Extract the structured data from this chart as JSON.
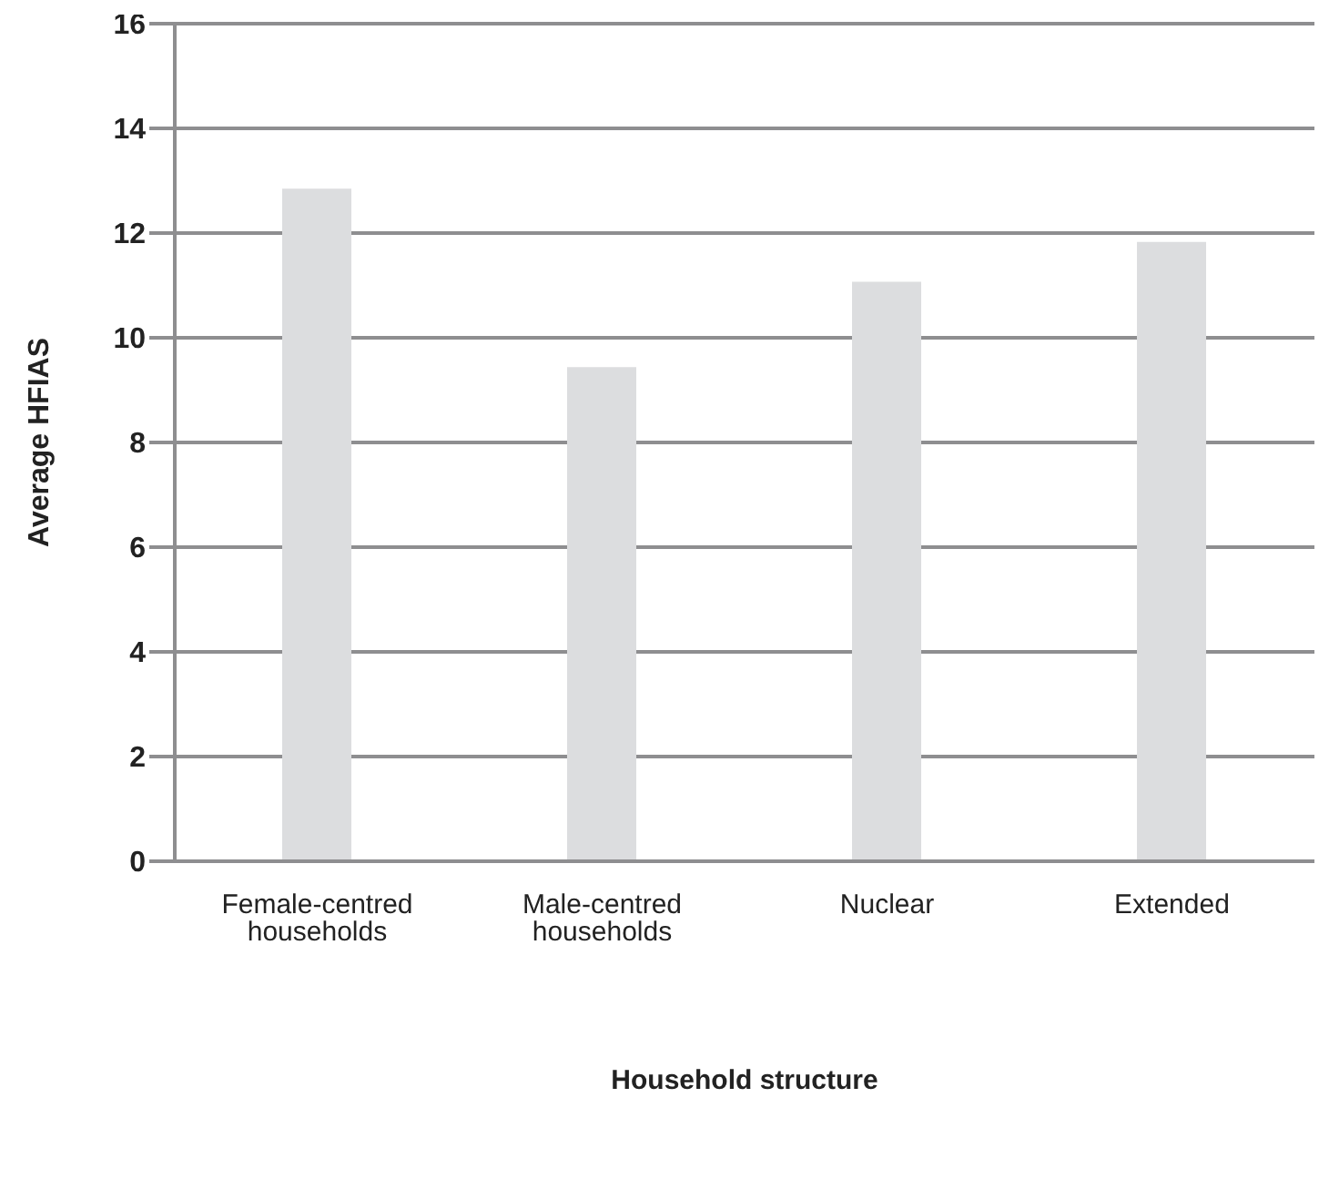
{
  "chart_data": {
    "type": "bar",
    "xlabel": "Household structure",
    "ylabel": "Average HFIAS",
    "categories": [
      "Female-centred households",
      "Male-centred households",
      "Nuclear",
      "Extended"
    ],
    "values": [
      12.85,
      9.44,
      11.07,
      11.83
    ],
    "color": "#dcdddf",
    "ylim": [
      0,
      16
    ],
    "yticks": [
      0,
      2,
      4,
      6,
      8,
      10,
      12,
      14,
      16
    ],
    "grid": "y"
  }
}
